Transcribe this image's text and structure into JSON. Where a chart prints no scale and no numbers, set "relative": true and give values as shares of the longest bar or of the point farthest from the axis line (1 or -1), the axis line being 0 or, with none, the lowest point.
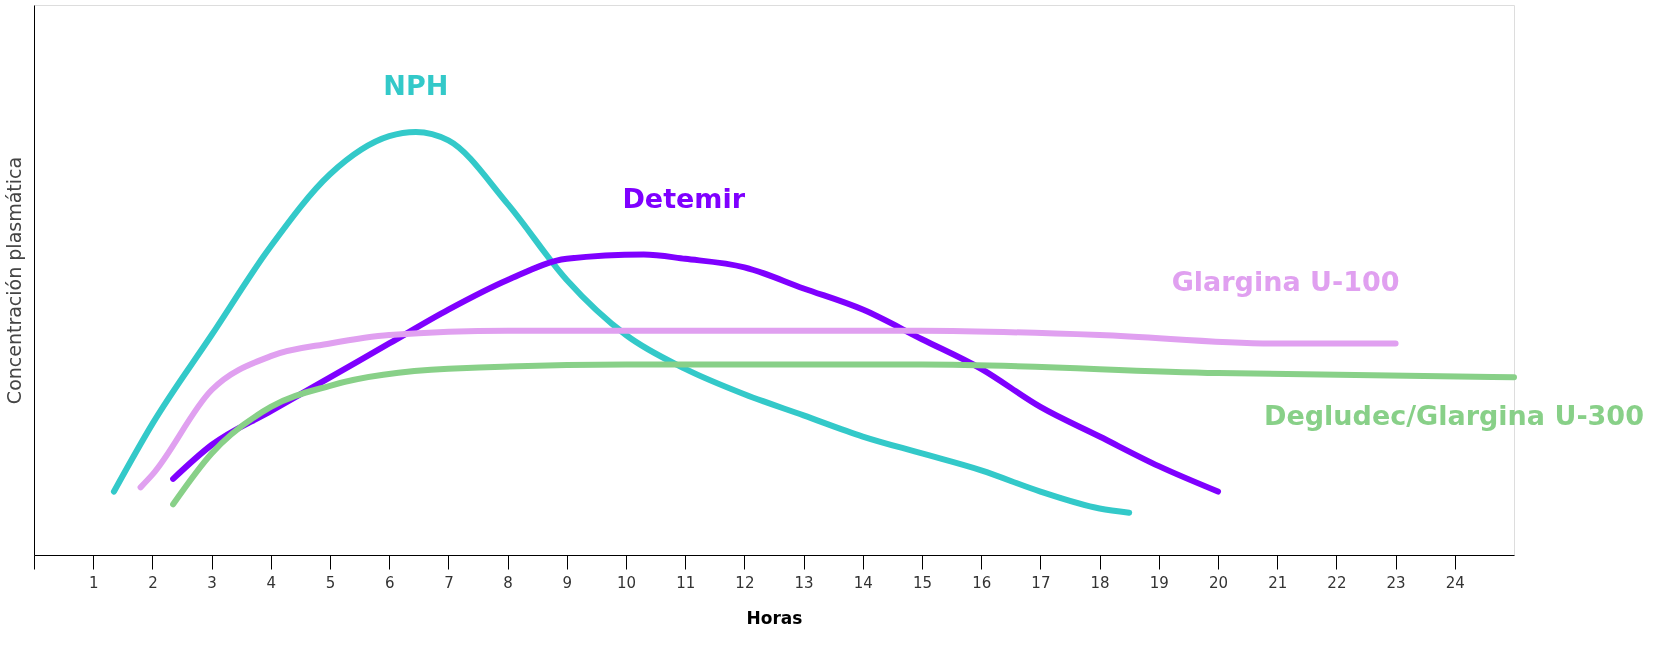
{
  "chart_data": {
    "type": "line",
    "relative": true,
    "xlabel": "Horas",
    "ylabel": "Concentración plasmática",
    "legend": false,
    "grid": false,
    "marker": "none",
    "line_style": "solid",
    "xlim": [
      0,
      25
    ],
    "xticks": [
      {
        "value": 0,
        "label": null
      },
      1,
      2,
      3,
      4,
      5,
      6,
      7,
      8,
      9,
      10,
      11,
      12,
      13,
      14,
      15,
      16,
      17,
      18,
      19,
      20,
      21,
      22,
      23,
      24
    ],
    "series": [
      {
        "name": "NPH",
        "color": "#33c9c9",
        "x": [
          1.35,
          2,
          3,
          4,
          5,
          6,
          6.45,
          7,
          8,
          9,
          10,
          11,
          12,
          13,
          14,
          15,
          16,
          17,
          18,
          18.5
        ],
        "values": [
          0.15,
          0.31,
          0.52,
          0.73,
          0.9,
          0.99,
          1.0,
          0.98,
          0.83,
          0.65,
          0.52,
          0.44,
          0.38,
          0.33,
          0.28,
          0.24,
          0.2,
          0.15,
          0.11,
          0.1
        ]
      },
      {
        "name": "Detemir",
        "color": "#7f00ff",
        "x": [
          2.35,
          3,
          4,
          5,
          6,
          7,
          8,
          9,
          10.3,
          11,
          12,
          13,
          14,
          15,
          16,
          17,
          18,
          19,
          20
        ],
        "values": [
          0.18,
          0.26,
          0.34,
          0.42,
          0.5,
          0.58,
          0.65,
          0.7,
          0.71,
          0.7,
          0.68,
          0.63,
          0.58,
          0.51,
          0.44,
          0.35,
          0.28,
          0.21,
          0.15
        ]
      },
      {
        "name": "Glargina U-100",
        "color": "#e0a0f0",
        "x": [
          1.8,
          2,
          3,
          4,
          5,
          6,
          8,
          11,
          15,
          18,
          21,
          23
        ],
        "values": [
          0.16,
          0.19,
          0.39,
          0.47,
          0.5,
          0.52,
          0.53,
          0.53,
          0.53,
          0.52,
          0.5,
          0.5
        ]
      },
      {
        "name": "Degludec/Glargina U-300",
        "color": "#88d088",
        "x": [
          2.35,
          3,
          4,
          5,
          7,
          10,
          15,
          20,
          25
        ],
        "values": [
          0.12,
          0.24,
          0.35,
          0.4,
          0.44,
          0.45,
          0.45,
          0.43,
          0.42
        ]
      }
    ]
  }
}
